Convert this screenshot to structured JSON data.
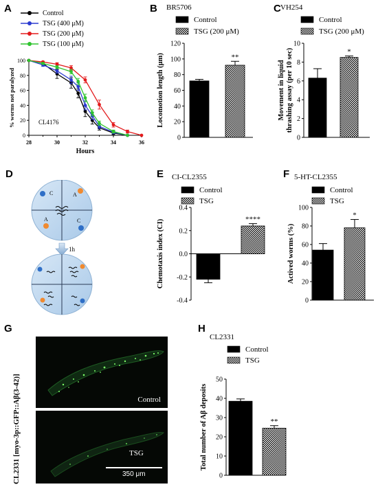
{
  "panels": {
    "A": {
      "letter": "A",
      "strain": "CL4176",
      "chart_data": {
        "type": "line",
        "title": "",
        "xlabel": "Hours",
        "ylabel": "% worms not paralyzed",
        "xlim": [
          28,
          36
        ],
        "ylim": [
          0,
          100
        ],
        "xticks": [
          "28",
          "30",
          "32",
          "34",
          "36"
        ],
        "yticks": [
          "0",
          "20",
          "40",
          "60",
          "80",
          "100"
        ],
        "legend_position": "top-left",
        "series": [
          {
            "name": "Control",
            "color": "#000000",
            "x": [
              28,
              29,
              30,
              31,
              31.5,
              32,
              32.5,
              33,
              34,
              35
            ],
            "y": [
              100,
              96,
              82,
              70,
              56,
              32,
              20,
              10,
              3,
              0
            ],
            "err": [
              0,
              2,
              6,
              7,
              6,
              7,
              5,
              3,
              2,
              0
            ]
          },
          {
            "name": "TSG (400 μM)",
            "color": "#2b3bd1",
            "x": [
              28,
              29,
              30,
              31,
              31.5,
              32,
              32.5,
              33,
              34,
              35
            ],
            "y": [
              100,
              94,
              86,
              74,
              65,
              40,
              26,
              12,
              4,
              0
            ],
            "err": [
              0,
              2,
              3,
              5,
              5,
              6,
              5,
              3,
              2,
              0
            ]
          },
          {
            "name": "TSG (200 μM)",
            "color": "#e31a1c",
            "x": [
              28,
              29,
              30,
              31,
              32,
              33,
              34,
              35,
              36
            ],
            "y": [
              100,
              98,
              95,
              90,
              74,
              41,
              14,
              5,
              0
            ],
            "err": [
              0,
              1,
              2,
              3,
              4,
              6,
              3,
              2,
              0
            ]
          },
          {
            "name": "TSG (100 μM)",
            "color": "#2fc42f",
            "x": [
              28,
              29,
              30,
              31,
              31.5,
              32,
              32.5,
              33,
              34,
              35
            ],
            "y": [
              100,
              96,
              91,
              85,
              72,
              50,
              30,
              16,
              5,
              0
            ],
            "err": [
              0,
              1,
              2,
              3,
              4,
              5,
              4,
              3,
              2,
              0
            ]
          }
        ]
      }
    },
    "B": {
      "letter": "B",
      "chart_data": {
        "type": "bar",
        "title": "BR5706",
        "ylabel": "Locomotion length (μm)",
        "ylim": [
          0,
          120
        ],
        "yticks": [
          "0",
          "20",
          "40",
          "60",
          "80",
          "100",
          "120"
        ],
        "series": [
          {
            "name": "Control",
            "value": 72,
            "err": 2,
            "pattern": "solid"
          },
          {
            "name": "TSG (200 μM)",
            "value": 92,
            "err": 5,
            "pattern": "checker"
          }
        ],
        "annotations": [
          "",
          "**"
        ]
      }
    },
    "C": {
      "letter": "C",
      "chart_data": {
        "type": "bar",
        "title": "VH254",
        "ylabel": "Movement in liquid thrashing assay (per 10 sec)",
        "ylabel_lines": [
          "Movement in liquid",
          "thrashing assay (per 10 sec)"
        ],
        "ylim": [
          0,
          10
        ],
        "yticks": [
          "0",
          "2",
          "4",
          "6",
          "8",
          "10"
        ],
        "series": [
          {
            "name": "Control",
            "value": 6.3,
            "err": 1.0,
            "pattern": "solid"
          },
          {
            "name": "TSG (200 μM)",
            "value": 8.5,
            "err": 0.15,
            "pattern": "checker"
          }
        ],
        "annotations": [
          "",
          "*"
        ]
      }
    },
    "D": {
      "letter": "D",
      "label_c": "C",
      "label_a": "A",
      "time_label": "1h"
    },
    "E": {
      "letter": "E",
      "chart_data": {
        "type": "bar",
        "title": "CI-CL2355",
        "ylabel": "Chemotaxis index (CI)",
        "ylim": [
          -0.4,
          0.4
        ],
        "yticks": [
          "-0.4",
          "-0.2",
          "0.0",
          "0.2",
          "0.4"
        ],
        "series": [
          {
            "name": "Control",
            "value": -0.22,
            "err": 0.03,
            "pattern": "solid"
          },
          {
            "name": "TSG",
            "value": 0.24,
            "err": 0.02,
            "pattern": "checker"
          }
        ],
        "annotations": [
          "",
          "****"
        ]
      }
    },
    "F": {
      "letter": "F",
      "chart_data": {
        "type": "bar",
        "title": "5-HT-CL2355",
        "ylabel": "Actived worms (%)",
        "ylim": [
          0,
          100
        ],
        "yticks": [
          "0",
          "20",
          "40",
          "60",
          "80",
          "100"
        ],
        "series": [
          {
            "name": "Control",
            "value": 54,
            "err": 7,
            "pattern": "solid"
          },
          {
            "name": "TSG",
            "value": 78,
            "err": 9,
            "pattern": "checker"
          }
        ],
        "annotations": [
          "",
          "*"
        ]
      }
    },
    "G": {
      "letter": "G",
      "strain_label": "CL2331 [myo-3p::GFP::Aβ(3-42)]",
      "top_label": "Control",
      "bottom_label": "TSG",
      "scale_label": "350 μm"
    },
    "H": {
      "letter": "H",
      "chart_data": {
        "type": "bar",
        "title": "CL2331",
        "ylabel": "Total number of Aβ deposits",
        "ylim": [
          0,
          50
        ],
        "yticks": [
          "0",
          "10",
          "20",
          "30",
          "40",
          "50"
        ],
        "series": [
          {
            "name": "Control",
            "value": 38.5,
            "err": 1.2,
            "pattern": "solid"
          },
          {
            "name": "TSG",
            "value": 24.5,
            "err": 1.3,
            "pattern": "checker"
          }
        ],
        "annotations": [
          "",
          "**"
        ]
      }
    }
  }
}
